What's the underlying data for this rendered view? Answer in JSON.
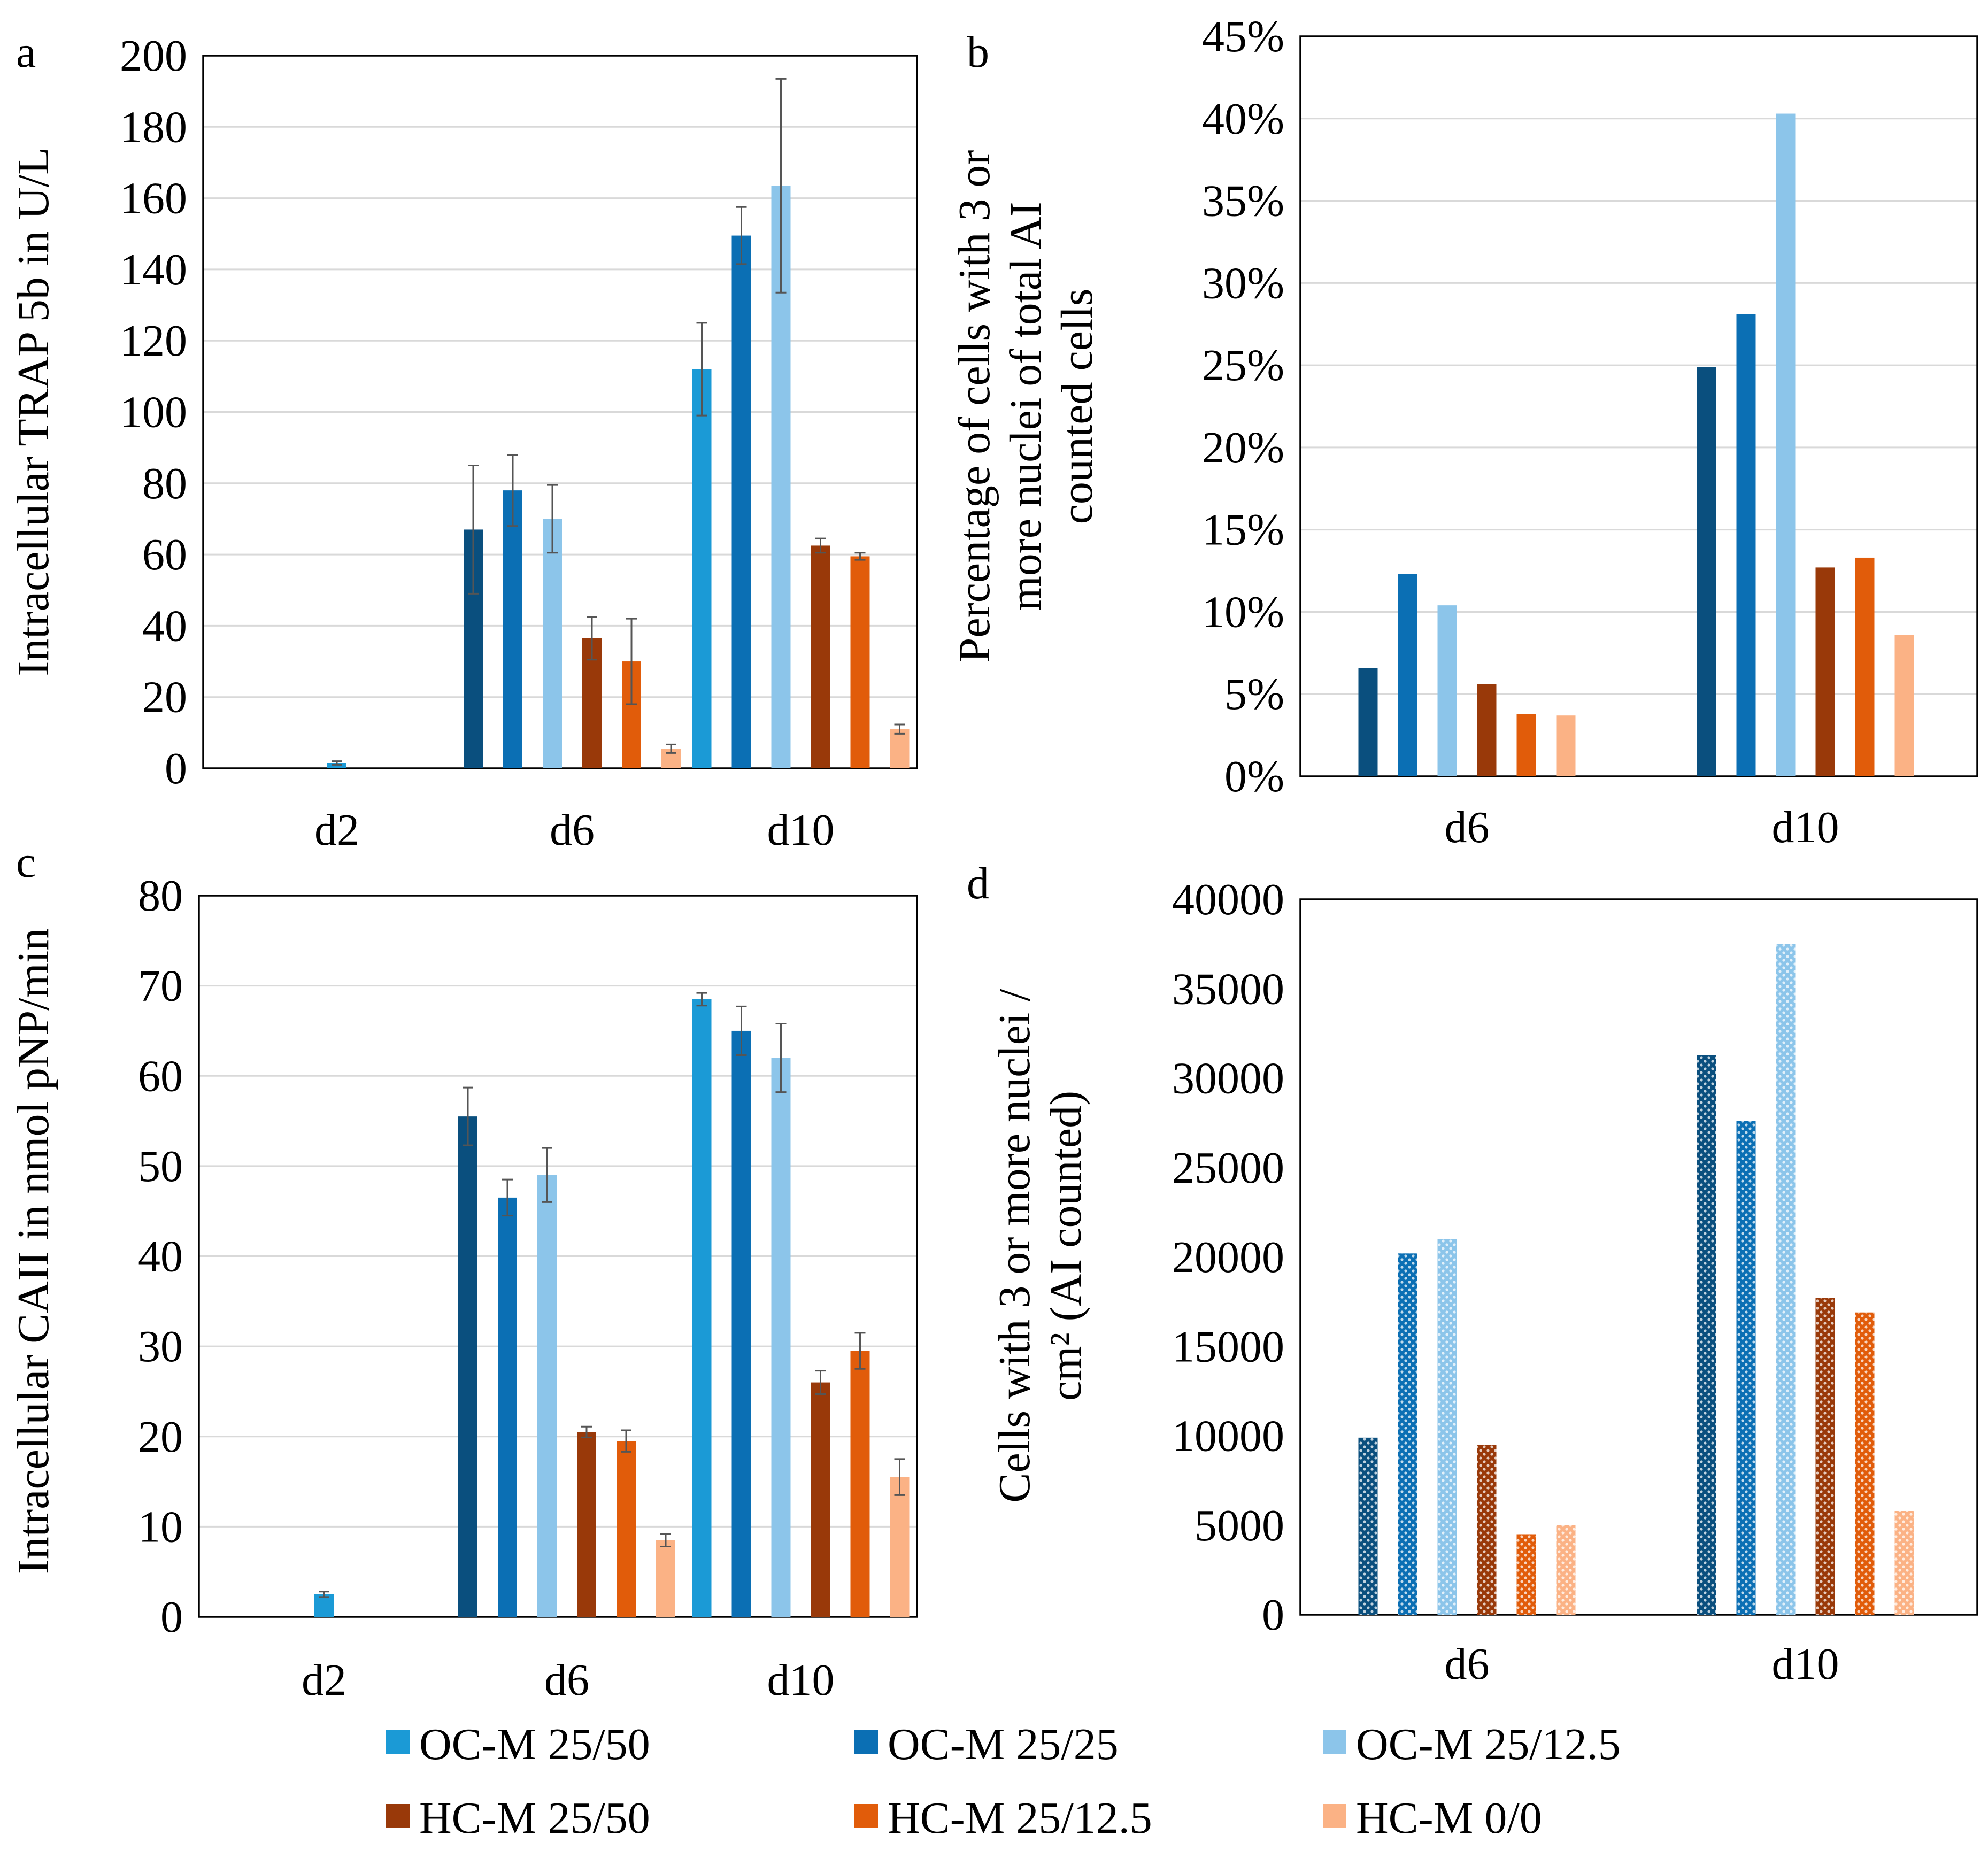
{
  "series_colors": [
    "#1b9ad6",
    "#0b6fb4",
    "#8cc5ea",
    "#993909",
    "#e15c0a",
    "#fbb285",
    "#0a4f7e"
  ],
  "chart_data": [
    {
      "id": "a",
      "panel_label": "a",
      "type": "bar",
      "ylabel": "Intracellular TRAP 5b in U/L",
      "ylim": [
        0,
        200
      ],
      "y_ticks": [
        "0",
        "20",
        "40",
        "60",
        "80",
        "100",
        "120",
        "140",
        "160",
        "180",
        "200"
      ],
      "categories": [
        "d2",
        "d6",
        "d10"
      ],
      "grid": true,
      "bars": [
        {
          "series": "OC-M 25/50",
          "category": "d2",
          "color": "#1b9ad6",
          "value": 1.5,
          "err": 0.5
        },
        {
          "series": "OC-M 25/50",
          "category": "d6",
          "color": "#0a4f7e",
          "value": 67,
          "err": 18
        },
        {
          "series": "OC-M 25/25",
          "category": "d6",
          "color": "#0b6fb4",
          "value": 78,
          "err": 10
        },
        {
          "series": "OC-M 25/12.5",
          "category": "d6",
          "color": "#8cc5ea",
          "value": 70,
          "err": 9.5
        },
        {
          "series": "HC-M 25/50",
          "category": "d6",
          "color": "#993909",
          "value": 36.5,
          "err": 6
        },
        {
          "series": "HC-M 25/12.5",
          "category": "d6",
          "color": "#e15c0a",
          "value": 30,
          "err": 12
        },
        {
          "series": "HC-M 0/0",
          "category": "d6",
          "color": "#fbb285",
          "value": 5.5,
          "err": 1.2
        },
        {
          "series": "OC-M 25/50",
          "category": "d10",
          "color": "#1b9ad6",
          "value": 112,
          "err": 13
        },
        {
          "series": "OC-M 25/25",
          "category": "d10",
          "color": "#0b6fb4",
          "value": 149.5,
          "err": 8
        },
        {
          "series": "OC-M 25/12.5",
          "category": "d10",
          "color": "#8cc5ea",
          "value": 163.5,
          "err": 30
        },
        {
          "series": "HC-M 25/50",
          "category": "d10",
          "color": "#993909",
          "value": 62.5,
          "err": 2
        },
        {
          "series": "HC-M 25/12.5",
          "category": "d10",
          "color": "#e15c0a",
          "value": 59.5,
          "err": 1
        },
        {
          "series": "HC-M 0/0",
          "category": "d10",
          "color": "#fbb285",
          "value": 11,
          "err": 1.3
        }
      ]
    },
    {
      "id": "b",
      "panel_label": "b",
      "type": "bar",
      "ylabel_lines": [
        "Percentage of cells with 3 or",
        "more nuclei of total AI",
        "counted cells"
      ],
      "ylim": [
        0,
        45
      ],
      "y_ticks": [
        "0%",
        "5%",
        "10%",
        "15%",
        "20%",
        "25%",
        "30%",
        "35%",
        "40%",
        "45%"
      ],
      "categories": [
        "d6",
        "d10"
      ],
      "grid": true,
      "bars": [
        {
          "series": "OC-M 25/50",
          "category": "d6",
          "color": "#0a4f7e",
          "value": 6.6
        },
        {
          "series": "OC-M 25/25",
          "category": "d6",
          "color": "#0b6fb4",
          "value": 12.3
        },
        {
          "series": "OC-M 25/12.5",
          "category": "d6",
          "color": "#8cc5ea",
          "value": 10.4
        },
        {
          "series": "HC-M 25/50",
          "category": "d6",
          "color": "#993909",
          "value": 5.6
        },
        {
          "series": "HC-M 25/12.5",
          "category": "d6",
          "color": "#e15c0a",
          "value": 3.8
        },
        {
          "series": "HC-M 0/0",
          "category": "d6",
          "color": "#fbb285",
          "value": 3.7
        },
        {
          "series": "OC-M 25/50",
          "category": "d10",
          "color": "#0a4f7e",
          "value": 24.9
        },
        {
          "series": "OC-M 25/25",
          "category": "d10",
          "color": "#0b6fb4",
          "value": 28.1
        },
        {
          "series": "OC-M 25/12.5",
          "category": "d10",
          "color": "#8cc5ea",
          "value": 40.3
        },
        {
          "series": "HC-M 25/50",
          "category": "d10",
          "color": "#993909",
          "value": 12.7
        },
        {
          "series": "HC-M 25/12.5",
          "category": "d10",
          "color": "#e15c0a",
          "value": 13.3
        },
        {
          "series": "HC-M 0/0",
          "category": "d10",
          "color": "#fbb285",
          "value": 8.6
        }
      ]
    },
    {
      "id": "c",
      "panel_label": "c",
      "type": "bar",
      "ylabel": "Intracellular CAII in nmol pNP/min",
      "ylim": [
        0,
        80
      ],
      "y_ticks": [
        "0",
        "10",
        "20",
        "30",
        "40",
        "50",
        "60",
        "70",
        "80"
      ],
      "categories": [
        "d2",
        "d6",
        "d10"
      ],
      "grid": true,
      "bars": [
        {
          "series": "OC-M 25/50",
          "category": "d2",
          "color": "#1b9ad6",
          "value": 2.5,
          "err": 0.3
        },
        {
          "series": "OC-M 25/50",
          "category": "d6",
          "color": "#0a4f7e",
          "value": 55.5,
          "err": 3.2
        },
        {
          "series": "OC-M 25/25",
          "category": "d6",
          "color": "#0b6fb4",
          "value": 46.5,
          "err": 2
        },
        {
          "series": "OC-M 25/12.5",
          "category": "d6",
          "color": "#8cc5ea",
          "value": 49,
          "err": 3
        },
        {
          "series": "HC-M 25/50",
          "category": "d6",
          "color": "#993909",
          "value": 20.5,
          "err": 0.6
        },
        {
          "series": "HC-M 25/12.5",
          "category": "d6",
          "color": "#e15c0a",
          "value": 19.5,
          "err": 1.2
        },
        {
          "series": "HC-M 0/0",
          "category": "d6",
          "color": "#fbb285",
          "value": 8.5,
          "err": 0.7
        },
        {
          "series": "OC-M 25/50",
          "category": "d10",
          "color": "#1b9ad6",
          "value": 68.5,
          "err": 0.7
        },
        {
          "series": "OC-M 25/25",
          "category": "d10",
          "color": "#0b6fb4",
          "value": 65,
          "err": 2.7
        },
        {
          "series": "OC-M 25/12.5",
          "category": "d10",
          "color": "#8cc5ea",
          "value": 62,
          "err": 3.8
        },
        {
          "series": "HC-M 25/50",
          "category": "d10",
          "color": "#993909",
          "value": 26,
          "err": 1.3
        },
        {
          "series": "HC-M 25/12.5",
          "category": "d10",
          "color": "#e15c0a",
          "value": 29.5,
          "err": 2
        },
        {
          "series": "HC-M 0/0",
          "category": "d10",
          "color": "#fbb285",
          "value": 15.5,
          "err": 2
        }
      ]
    },
    {
      "id": "d",
      "panel_label": "d",
      "type": "bar",
      "ylabel_lines": [
        "Cells with 3 or more nuclei /",
        "cm² (AI counted)"
      ],
      "ylim": [
        0,
        40000
      ],
      "y_ticks": [
        "0",
        "5000",
        "10000",
        "15000",
        "20000",
        "25000",
        "30000",
        "35000",
        "40000"
      ],
      "categories": [
        "d6",
        "d10"
      ],
      "grid": false,
      "dotted": true,
      "bars": [
        {
          "series": "OC-M 25/50",
          "category": "d6",
          "color": "#0a4f7e",
          "value": 9900
        },
        {
          "series": "OC-M 25/25",
          "category": "d6",
          "color": "#0b6fb4",
          "value": 20200
        },
        {
          "series": "OC-M 25/12.5",
          "category": "d6",
          "color": "#8cc5ea",
          "value": 21000
        },
        {
          "series": "HC-M 25/50",
          "category": "d6",
          "color": "#993909",
          "value": 9500
        },
        {
          "series": "HC-M 25/12.5",
          "category": "d6",
          "color": "#e15c0a",
          "value": 4500
        },
        {
          "series": "HC-M 0/0",
          "category": "d6",
          "color": "#fbb285",
          "value": 5000
        },
        {
          "series": "OC-M 25/50",
          "category": "d10",
          "color": "#0a4f7e",
          "value": 31300
        },
        {
          "series": "OC-M 25/25",
          "category": "d10",
          "color": "#0b6fb4",
          "value": 27600
        },
        {
          "series": "OC-M 25/12.5",
          "category": "d10",
          "color": "#8cc5ea",
          "value": 37500
        },
        {
          "series": "HC-M 25/50",
          "category": "d10",
          "color": "#993909",
          "value": 17700
        },
        {
          "series": "HC-M 25/12.5",
          "category": "d10",
          "color": "#e15c0a",
          "value": 16900
        },
        {
          "series": "HC-M 0/0",
          "category": "d10",
          "color": "#fbb285",
          "value": 5800
        }
      ]
    }
  ],
  "legend": [
    {
      "label": "OC-M 25/50",
      "color": "#1b9ad6"
    },
    {
      "label": "OC-M 25/25",
      "color": "#0b6fb4"
    },
    {
      "label": "OC-M 25/12.5",
      "color": "#8cc5ea"
    },
    {
      "label": "HC-M 25/50",
      "color": "#993909"
    },
    {
      "label": "HC-M 25/12.5",
      "color": "#e15c0a"
    },
    {
      "label": "HC-M 0/0",
      "color": "#fbb285"
    }
  ]
}
